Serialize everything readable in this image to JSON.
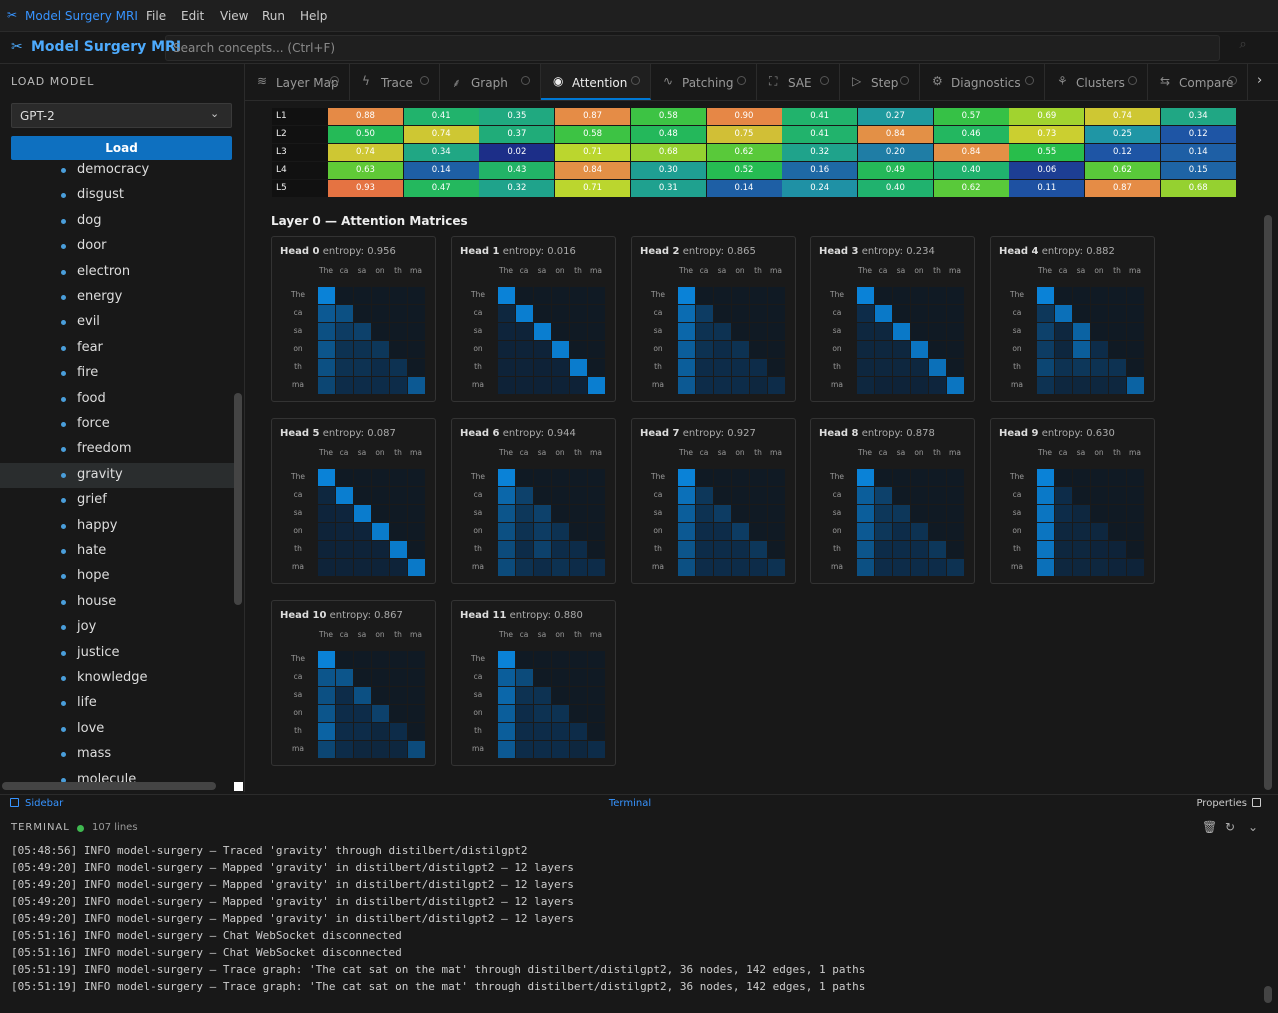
{
  "titlebar": {
    "app": "Model Surgery MRI",
    "menu": [
      "File",
      "Edit",
      "View",
      "Run",
      "Help"
    ]
  },
  "header": {
    "title": "Model Surgery MRI",
    "search_placeholder": "Search concepts... (Ctrl+F)"
  },
  "sidebar": {
    "section": "LOAD MODEL",
    "model": "GPT-2",
    "load_button": "Load",
    "concepts": [
      "democracy",
      "disgust",
      "dog",
      "door",
      "electron",
      "energy",
      "evil",
      "fear",
      "fire",
      "food",
      "force",
      "freedom",
      "gravity",
      "grief",
      "happy",
      "hate",
      "hope",
      "house",
      "joy",
      "justice",
      "knowledge",
      "life",
      "love",
      "mass",
      "molecule"
    ],
    "selected": "gravity"
  },
  "tabs": {
    "items": [
      "Layer Map",
      "Trace",
      "Graph",
      "Attention",
      "Patching",
      "SAE",
      "Step",
      "Diagnostics",
      "Clusters",
      "Compare"
    ],
    "active": "Attention"
  },
  "layer_heatmap": {
    "rows": [
      {
        "label": "L1",
        "values": [
          "0.88",
          "0.41",
          "0.35",
          "0.87",
          "0.58",
          "0.90",
          "0.41",
          "0.27",
          "0.57",
          "0.69",
          "0.74",
          "0.34"
        ]
      },
      {
        "label": "L2",
        "values": [
          "0.50",
          "0.74",
          "0.37",
          "0.58",
          "0.48",
          "0.75",
          "0.41",
          "0.84",
          "0.46",
          "0.73",
          "0.25",
          "0.12"
        ]
      },
      {
        "label": "L3",
        "values": [
          "0.74",
          "0.34",
          "0.02",
          "0.71",
          "0.68",
          "0.62",
          "0.32",
          "0.20",
          "0.84",
          "0.55",
          "0.12",
          "0.14"
        ]
      },
      {
        "label": "L4",
        "values": [
          "0.63",
          "0.14",
          "0.43",
          "0.84",
          "0.30",
          "0.52",
          "0.16",
          "0.49",
          "0.40",
          "0.06",
          "0.62",
          "0.15"
        ]
      },
      {
        "label": "L5",
        "values": [
          "0.93",
          "0.47",
          "0.32",
          "0.71",
          "0.31",
          "0.14",
          "0.24",
          "0.40",
          "0.62",
          "0.11",
          "0.87",
          "0.68"
        ]
      }
    ]
  },
  "attention": {
    "title": "Layer 0 — Attention Matrices",
    "tokens": [
      "The",
      "ca",
      "sa",
      "on",
      "th",
      "ma"
    ],
    "entropy_label": "entropy:",
    "heads": [
      {
        "name": "Head 0",
        "entropy": "0.956",
        "weights": [
          [
            1,
            0,
            0,
            0,
            0,
            0
          ],
          [
            0.55,
            0.45,
            0,
            0,
            0,
            0
          ],
          [
            0.45,
            0.25,
            0.3,
            0,
            0,
            0
          ],
          [
            0.5,
            0.15,
            0.15,
            0.2,
            0,
            0
          ],
          [
            0.45,
            0.15,
            0.15,
            0.1,
            0.15,
            0
          ],
          [
            0.35,
            0.1,
            0.1,
            0.1,
            0.1,
            0.55
          ]
        ]
      },
      {
        "name": "Head 1",
        "entropy": "0.016",
        "weights": [
          [
            1,
            0,
            0,
            0,
            0,
            0
          ],
          [
            0.05,
            0.95,
            0,
            0,
            0,
            0
          ],
          [
            0.03,
            0.02,
            0.95,
            0,
            0,
            0
          ],
          [
            0.02,
            0.02,
            0.02,
            0.94,
            0,
            0
          ],
          [
            0.02,
            0.02,
            0.01,
            0.02,
            0.93,
            0
          ],
          [
            0.01,
            0.01,
            0.01,
            0.01,
            0.01,
            0.95
          ]
        ]
      },
      {
        "name": "Head 2",
        "entropy": "0.865",
        "weights": [
          [
            1,
            0,
            0,
            0,
            0,
            0
          ],
          [
            0.75,
            0.25,
            0,
            0,
            0,
            0
          ],
          [
            0.7,
            0.15,
            0.15,
            0,
            0,
            0
          ],
          [
            0.6,
            0.15,
            0.1,
            0.15,
            0,
            0
          ],
          [
            0.6,
            0.1,
            0.1,
            0.1,
            0.1,
            0
          ],
          [
            0.55,
            0.1,
            0.1,
            0.1,
            0.05,
            0.1
          ]
        ]
      },
      {
        "name": "Head 3",
        "entropy": "0.234",
        "weights": [
          [
            1,
            0,
            0,
            0,
            0,
            0
          ],
          [
            0.1,
            0.9,
            0,
            0,
            0,
            0
          ],
          [
            0.05,
            0.05,
            0.9,
            0,
            0,
            0
          ],
          [
            0.05,
            0.05,
            0.05,
            0.85,
            0,
            0
          ],
          [
            0.05,
            0.05,
            0.05,
            0.05,
            0.8,
            0
          ],
          [
            0.05,
            0.02,
            0.02,
            0.02,
            0.04,
            0.85
          ]
        ]
      },
      {
        "name": "Head 4",
        "entropy": "0.882",
        "weights": [
          [
            1,
            0,
            0,
            0,
            0,
            0
          ],
          [
            0.2,
            0.8,
            0,
            0,
            0,
            0
          ],
          [
            0.3,
            0.05,
            0.65,
            0,
            0,
            0
          ],
          [
            0.25,
            0.05,
            0.6,
            0.1,
            0,
            0
          ],
          [
            0.35,
            0.15,
            0.2,
            0.15,
            0.15,
            0
          ],
          [
            0.15,
            0.05,
            0.05,
            0.05,
            0.05,
            0.65
          ]
        ]
      },
      {
        "name": "Head 5",
        "entropy": "0.087",
        "weights": [
          [
            1,
            0,
            0,
            0,
            0,
            0
          ],
          [
            0.05,
            0.95,
            0,
            0,
            0,
            0
          ],
          [
            0.03,
            0.04,
            0.93,
            0,
            0,
            0
          ],
          [
            0.02,
            0.03,
            0.03,
            0.92,
            0,
            0
          ],
          [
            0.02,
            0.02,
            0.02,
            0.02,
            0.92,
            0
          ],
          [
            0.02,
            0.02,
            0.02,
            0.02,
            0.02,
            0.9
          ]
        ]
      },
      {
        "name": "Head 6",
        "entropy": "0.944",
        "weights": [
          [
            1,
            0,
            0,
            0,
            0,
            0
          ],
          [
            0.7,
            0.3,
            0,
            0,
            0,
            0
          ],
          [
            0.5,
            0.2,
            0.3,
            0,
            0,
            0
          ],
          [
            0.45,
            0.15,
            0.25,
            0.15,
            0,
            0
          ],
          [
            0.4,
            0.1,
            0.3,
            0.1,
            0.1,
            0
          ],
          [
            0.4,
            0.15,
            0.1,
            0.15,
            0.1,
            0.1
          ]
        ]
      },
      {
        "name": "Head 7",
        "entropy": "0.927",
        "weights": [
          [
            1,
            0,
            0,
            0,
            0,
            0
          ],
          [
            0.8,
            0.2,
            0,
            0,
            0,
            0
          ],
          [
            0.6,
            0.15,
            0.25,
            0,
            0,
            0
          ],
          [
            0.55,
            0.1,
            0.1,
            0.25,
            0,
            0
          ],
          [
            0.5,
            0.1,
            0.1,
            0.1,
            0.2,
            0
          ],
          [
            0.45,
            0.1,
            0.1,
            0.1,
            0.1,
            0.15
          ]
        ]
      },
      {
        "name": "Head 8",
        "entropy": "0.878",
        "weights": [
          [
            1,
            0,
            0,
            0,
            0,
            0
          ],
          [
            0.6,
            0.3,
            0,
            0,
            0,
            0
          ],
          [
            0.6,
            0.2,
            0.2,
            0,
            0,
            0
          ],
          [
            0.55,
            0.2,
            0.1,
            0.15,
            0,
            0
          ],
          [
            0.5,
            0.1,
            0.1,
            0.1,
            0.2,
            0
          ],
          [
            0.45,
            0.1,
            0.1,
            0.1,
            0.1,
            0.15
          ]
        ]
      },
      {
        "name": "Head 9",
        "entropy": "0.630",
        "weights": [
          [
            1,
            0,
            0,
            0,
            0,
            0
          ],
          [
            0.9,
            0.1,
            0,
            0,
            0,
            0
          ],
          [
            0.85,
            0.1,
            0.05,
            0,
            0,
            0
          ],
          [
            0.85,
            0.05,
            0.05,
            0.05,
            0,
            0
          ],
          [
            0.85,
            0.05,
            0.05,
            0.03,
            0.02,
            0
          ],
          [
            0.8,
            0.05,
            0.05,
            0.05,
            0.03,
            0.02
          ]
        ]
      },
      {
        "name": "Head 10",
        "entropy": "0.867",
        "weights": [
          [
            1,
            0,
            0,
            0,
            0,
            0
          ],
          [
            0.5,
            0.5,
            0,
            0,
            0,
            0
          ],
          [
            0.45,
            0.1,
            0.45,
            0,
            0,
            0
          ],
          [
            0.5,
            0.1,
            0.1,
            0.3,
            0,
            0
          ],
          [
            0.65,
            0.1,
            0.1,
            0.05,
            0.1,
            0
          ],
          [
            0.35,
            0.1,
            0.05,
            0.05,
            0.05,
            0.4
          ]
        ]
      },
      {
        "name": "Head 11",
        "entropy": "0.880",
        "weights": [
          [
            1,
            0,
            0,
            0,
            0,
            0
          ],
          [
            0.6,
            0.4,
            0,
            0,
            0,
            0
          ],
          [
            0.7,
            0.15,
            0.15,
            0,
            0,
            0
          ],
          [
            0.6,
            0.1,
            0.15,
            0.15,
            0,
            0
          ],
          [
            0.6,
            0.1,
            0.1,
            0.1,
            0.1,
            0
          ],
          [
            0.55,
            0.1,
            0.1,
            0.1,
            0.05,
            0.1
          ]
        ]
      }
    ]
  },
  "statusbar": {
    "left": "Sidebar",
    "center": "Terminal",
    "right": "Properties"
  },
  "terminal": {
    "title": "TERMINAL",
    "count": "107 lines",
    "lines": [
      "[05:48:56] INFO model-surgery — Traced 'gravity' through distilbert/distilgpt2",
      "[05:49:20] INFO model-surgery — Mapped 'gravity' in distilbert/distilgpt2 — 12 layers",
      "[05:49:20] INFO model-surgery — Mapped 'gravity' in distilbert/distilgpt2 — 12 layers",
      "[05:49:20] INFO model-surgery — Mapped 'gravity' in distilbert/distilgpt2 — 12 layers",
      "[05:49:20] INFO model-surgery — Mapped 'gravity' in distilbert/distilgpt2 — 12 layers",
      "[05:51:16] INFO model-surgery — Chat WebSocket disconnected",
      "[05:51:16] INFO model-surgery — Chat WebSocket disconnected",
      "[05:51:19] INFO model-surgery — Trace graph: 'The cat sat on the mat' through distilbert/distilgpt2, 36 nodes, 142 edges, 1 paths",
      "[05:51:19] INFO model-surgery — Trace graph: 'The cat sat on the mat' through distilbert/distilgpt2, 36 nodes, 142 edges, 1 paths"
    ]
  }
}
